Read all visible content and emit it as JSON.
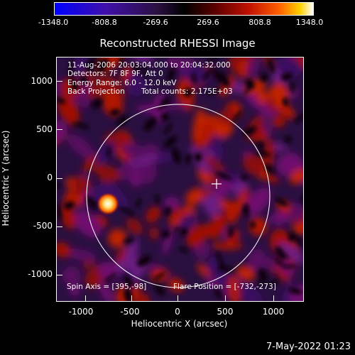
{
  "colorbar": {
    "ticks": [
      "-1348.0",
      "-808.8",
      "-269.6",
      "269.6",
      "808.8",
      "1348.0"
    ]
  },
  "title": "Reconstructed RHESSI Image",
  "annotations": {
    "time_range": "11-Aug-2006 20:03:04.000 to 20:04:32.000",
    "detectors": "Detectors: 7F 8F 9F, Att 0",
    "energy_range": "Energy Range: 6.0 - 12.0 keV",
    "method": "Back Projection",
    "total_counts": "Total counts: 2.175E+03",
    "spin_axis": "Spin Axis = [395,-98]",
    "flare_position": "Flare Position = [-732,-273]"
  },
  "axes": {
    "xlabel": "Heliocentric X (arcsec)",
    "ylabel": "Heliocentric Y (arcsec)",
    "xticks": [
      "-1000",
      "-500",
      "0",
      "500",
      "1000"
    ],
    "yticks": [
      "1000",
      "500",
      "0",
      "-500",
      "-1000"
    ]
  },
  "footer": "7-May-2022 01:23"
}
